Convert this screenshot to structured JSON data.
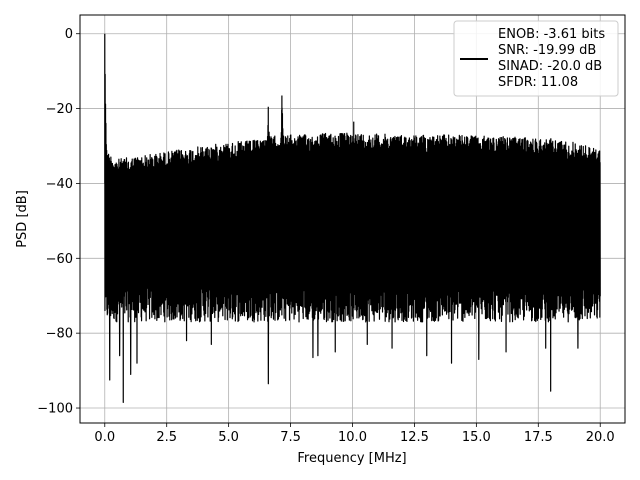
{
  "chart_data": {
    "type": "line",
    "title": "",
    "xlabel": "Frequency [MHz]",
    "ylabel": "PSD [dB]",
    "xlim": [
      -1.0,
      21.0
    ],
    "ylim": [
      -104.0,
      5.0
    ],
    "grid": true,
    "xticks": [
      0.0,
      2.5,
      5.0,
      7.5,
      10.0,
      12.5,
      15.0,
      17.5,
      20.0
    ],
    "xtick_labels": [
      "0.0",
      "2.5",
      "5.0",
      "7.5",
      "10.0",
      "12.5",
      "15.0",
      "17.5",
      "20.0"
    ],
    "yticks": [
      0,
      -20,
      -40,
      -60,
      -80,
      -100
    ],
    "ytick_labels": [
      "0",
      "−20",
      "−40",
      "−60",
      "−80",
      "−100"
    ],
    "legend_placement": "top-right",
    "legend_lines": [
      "ENOB: -3.61 bits",
      "SNR: -19.99 dB",
      "SINAD: -20.0 dB",
      "SFDR: 11.08"
    ],
    "line_color": "#000000",
    "series": [
      {
        "x_range": [
          0.0,
          20.0
        ],
        "upper_envelope": [
          [
            0.0,
            0.0
          ],
          [
            0.05,
            -25.0
          ],
          [
            0.12,
            -31.5
          ],
          [
            0.5,
            -33.5
          ],
          [
            1.0,
            -33.0
          ],
          [
            2.0,
            -32.0
          ],
          [
            3.0,
            -31.0
          ],
          [
            4.0,
            -30.0
          ],
          [
            5.0,
            -29.0
          ],
          [
            6.0,
            -28.5
          ],
          [
            6.55,
            -27.5
          ],
          [
            6.6,
            -19.5
          ],
          [
            6.65,
            -27.5
          ],
          [
            7.1,
            -27.0
          ],
          [
            7.15,
            -16.5
          ],
          [
            7.2,
            -27.0
          ],
          [
            8.0,
            -27.0
          ],
          [
            9.0,
            -26.5
          ],
          [
            10.0,
            -26.5
          ],
          [
            10.05,
            -23.5
          ],
          [
            10.1,
            -26.5
          ],
          [
            12.0,
            -27.0
          ],
          [
            14.0,
            -27.0
          ],
          [
            16.0,
            -27.5
          ],
          [
            18.0,
            -28.0
          ],
          [
            19.0,
            -29.0
          ],
          [
            20.0,
            -31.0
          ]
        ],
        "typical_floor": -72,
        "dips": [
          [
            0.2,
            -92.5
          ],
          [
            0.6,
            -86.0
          ],
          [
            0.75,
            -98.5
          ],
          [
            1.05,
            -91.0
          ],
          [
            1.3,
            -88.0
          ],
          [
            3.3,
            -82.0
          ],
          [
            4.3,
            -83.0
          ],
          [
            6.6,
            -93.5
          ],
          [
            8.4,
            -86.5
          ],
          [
            8.6,
            -86.0
          ],
          [
            9.3,
            -85.0
          ],
          [
            10.6,
            -83.0
          ],
          [
            11.6,
            -84.0
          ],
          [
            13.0,
            -86.0
          ],
          [
            14.0,
            -88.0
          ],
          [
            15.1,
            -87.0
          ],
          [
            16.2,
            -85.0
          ],
          [
            17.8,
            -84.0
          ],
          [
            18.0,
            -95.5
          ],
          [
            19.1,
            -84.0
          ]
        ]
      }
    ]
  }
}
